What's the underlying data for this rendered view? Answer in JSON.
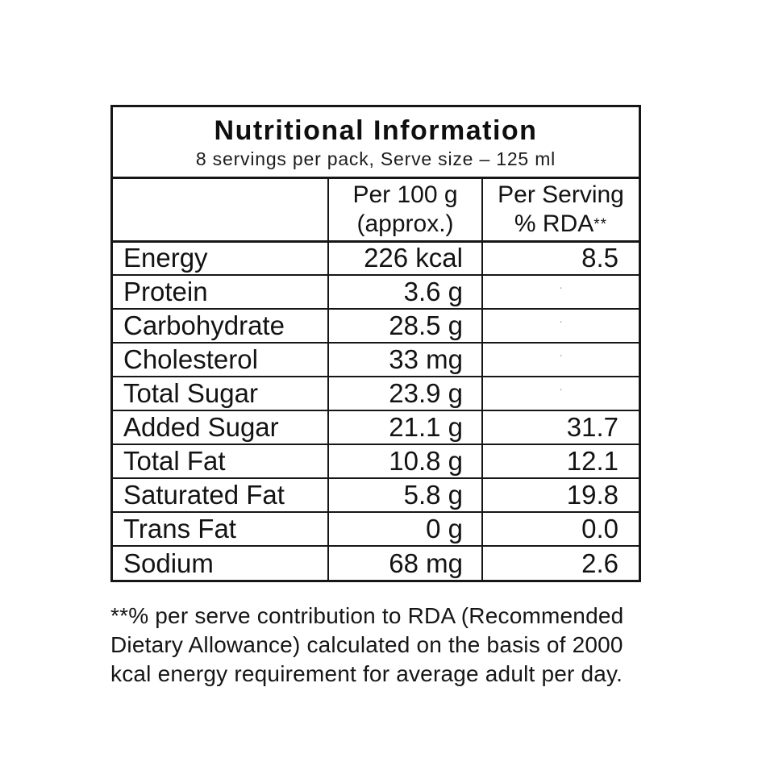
{
  "header": {
    "title": "Nutritional Information",
    "subtitle": "8 servings per pack, Serve size – 125 ml"
  },
  "columns": {
    "per100_line1": "Per 100 g",
    "per100_line2": "(approx.)",
    "serving_line1": "Per Serving",
    "serving_line2": "% RDA",
    "serving_sup": "**"
  },
  "rows": [
    {
      "label": "Energy",
      "per100": "226 kcal",
      "rda": "8.5"
    },
    {
      "label": "Protein",
      "per100": "3.6 g",
      "rda": "·"
    },
    {
      "label": "Carbohydrate",
      "per100": "28.5 g",
      "rda": "·"
    },
    {
      "label": "Cholesterol",
      "per100": "33 mg",
      "rda": "·"
    },
    {
      "label": "Total Sugar",
      "per100": "23.9 g",
      "rda": "·"
    },
    {
      "label": "Added Sugar",
      "per100": "21.1 g",
      "rda": "31.7"
    },
    {
      "label": "Total Fat",
      "per100": "10.8 g",
      "rda": "12.1"
    },
    {
      "label": "Saturated Fat",
      "per100": "5.8 g",
      "rda": "19.8"
    },
    {
      "label": "Trans Fat",
      "per100": "0 g",
      "rda": "0.0"
    },
    {
      "label": "Sodium",
      "per100": "68 mg",
      "rda": "2.6"
    }
  ],
  "footnote": {
    "lines": [
      "**% per serve contribution to RDA (Recommended",
      "Dietary Allowance) calculated on the basis of 2000",
      "kcal energy requirement for average adult per day."
    ]
  },
  "colors": {
    "border": "#161616",
    "text": "#131313",
    "faint_dot": "#a3a3a3",
    "background": "#ffffff"
  }
}
